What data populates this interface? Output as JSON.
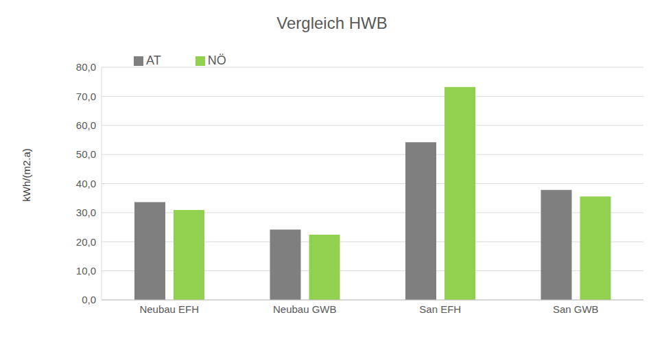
{
  "chart_data": {
    "type": "bar",
    "title": "Vergleich HWB",
    "y_label": "kWh/(m2.a)",
    "categories": [
      "Neubau EFH",
      "Neubau GWB",
      "San EFH",
      "San GWB"
    ],
    "series": [
      {
        "name": "AT",
        "color": "#7f7f7f",
        "values": [
          33.6,
          24.2,
          54.2,
          37.8
        ]
      },
      {
        "name": "NÖ",
        "color": "#92d050",
        "values": [
          30.9,
          22.4,
          73.2,
          35.6
        ]
      }
    ],
    "ylim": [
      0,
      80
    ],
    "yticks": [
      {
        "value": 0,
        "label": "0,0"
      },
      {
        "value": 10,
        "label": "10,0"
      },
      {
        "value": 20,
        "label": "20,0"
      },
      {
        "value": 30,
        "label": "30,0"
      },
      {
        "value": 40,
        "label": "40,0"
      },
      {
        "value": 50,
        "label": "50,0"
      },
      {
        "value": 60,
        "label": "60,0"
      },
      {
        "value": 70,
        "label": "70,0"
      },
      {
        "value": 80,
        "label": "80,0"
      }
    ],
    "grid": true,
    "legend": "top-left"
  }
}
